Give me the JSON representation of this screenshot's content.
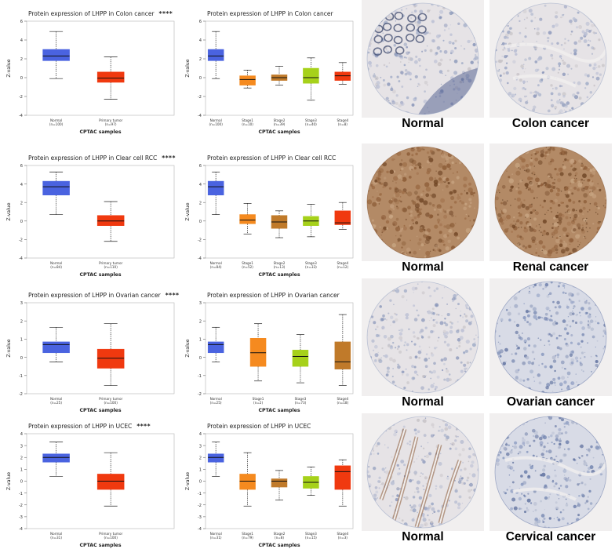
{
  "chart_data": [
    {
      "type": "box",
      "cancer": "Colon cancer",
      "title": "Protein expression of LHPP in Colon cancer",
      "significance": "****",
      "xlabel": "CPTAC samples",
      "ylabel": "Z-value",
      "ylim": [
        -4,
        6
      ],
      "yticks": [
        "6",
        "4",
        "2",
        "0",
        "-2",
        "-4"
      ],
      "boxes": [
        {
          "label": "Normal",
          "n": "(n=100)",
          "color": "#4a63e0",
          "min": -0.1,
          "q1": 1.8,
          "median": 2.3,
          "q3": 3.0,
          "max": 4.9
        },
        {
          "label": "Primary tumor",
          "n": "(n=97)",
          "color": "#f0390f",
          "min": -2.3,
          "q1": -0.5,
          "median": -0.05,
          "q3": 0.6,
          "max": 2.2
        }
      ]
    },
    {
      "type": "box",
      "cancer": "Colon cancer",
      "title": "Protein expression of LHPP in Colon cancer",
      "significance": "",
      "xlabel": "CPTAC samples",
      "ylabel": "Z-value",
      "ylim": [
        -4,
        6
      ],
      "yticks": [
        "6",
        "4",
        "2",
        "0",
        "-2",
        "-4"
      ],
      "boxes": [
        {
          "label": "Normal",
          "n": "(n=100)",
          "color": "#4a63e0",
          "min": -0.1,
          "q1": 1.8,
          "median": 2.3,
          "q3": 3.0,
          "max": 4.9
        },
        {
          "label": "Stage1",
          "n": "(n=10)",
          "color": "#f58a1f",
          "min": -1.1,
          "q1": -0.8,
          "median": -0.2,
          "q3": 0.2,
          "max": 0.8
        },
        {
          "label": "Stage2",
          "n": "(n=39)",
          "color": "#c07a2a",
          "min": -0.8,
          "q1": -0.3,
          "median": 0.0,
          "q3": 0.3,
          "max": 1.2
        },
        {
          "label": "Stage3",
          "n": "(n=40)",
          "color": "#a6d11a",
          "min": -2.4,
          "q1": -0.6,
          "median": 0.0,
          "q3": 1.0,
          "max": 2.1
        },
        {
          "label": "Stage4",
          "n": "(n=8)",
          "color": "#f0390f",
          "min": -0.7,
          "q1": -0.3,
          "median": 0.2,
          "q3": 0.6,
          "max": 1.6
        }
      ]
    },
    {
      "type": "box",
      "cancer": "Clear cell RCC",
      "title": "Protein expression of LHPP in Clear cell RCC",
      "significance": "****",
      "xlabel": "CPTAC samples",
      "ylabel": "Z-value",
      "ylim": [
        -4,
        6
      ],
      "yticks": [
        "6",
        "4",
        "2",
        "0",
        "-2",
        "-4"
      ],
      "boxes": [
        {
          "label": "Normal",
          "n": "(n=84)",
          "color": "#4a63e0",
          "min": 0.7,
          "q1": 2.8,
          "median": 3.7,
          "q3": 4.3,
          "max": 5.3
        },
        {
          "label": "Primary tumor",
          "n": "(n=110)",
          "color": "#f0390f",
          "min": -2.2,
          "q1": -0.5,
          "median": 0.0,
          "q3": 0.6,
          "max": 2.1
        }
      ]
    },
    {
      "type": "box",
      "cancer": "Clear cell RCC",
      "title": "Protein expression of LHPP in Clear cell RCC",
      "significance": "",
      "xlabel": "CPTAC samples",
      "ylabel": "Z-value",
      "ylim": [
        -4,
        6
      ],
      "yticks": [
        "6",
        "4",
        "2",
        "0",
        "-2",
        "-4"
      ],
      "boxes": [
        {
          "label": "Normal",
          "n": "(n=84)",
          "color": "#4a63e0",
          "min": 0.7,
          "q1": 2.8,
          "median": 3.7,
          "q3": 4.3,
          "max": 5.3
        },
        {
          "label": "Stage1",
          "n": "(n=52)",
          "color": "#f58a1f",
          "min": -1.4,
          "q1": -0.3,
          "median": 0.1,
          "q3": 0.7,
          "max": 1.9
        },
        {
          "label": "Stage2",
          "n": "(n=13)",
          "color": "#c07a2a",
          "min": -1.8,
          "q1": -0.8,
          "median": -0.1,
          "q3": 0.6,
          "max": 1.1
        },
        {
          "label": "Stage3",
          "n": "(n=33)",
          "color": "#a6d11a",
          "min": -1.7,
          "q1": -0.5,
          "median": 0.0,
          "q3": 0.5,
          "max": 1.8
        },
        {
          "label": "Stage4",
          "n": "(n=12)",
          "color": "#f0390f",
          "min": -0.9,
          "q1": -0.4,
          "median": -0.2,
          "q3": 1.1,
          "max": 2.0
        }
      ]
    },
    {
      "type": "box",
      "cancer": "Ovarian cancer",
      "title": "Protein expression of LHPP in Ovarian cancer",
      "significance": "****",
      "xlabel": "CPTAC samples",
      "ylabel": "Z-value",
      "ylim": [
        -2,
        3
      ],
      "yticks": [
        "3",
        "2",
        "1",
        "0",
        "-1",
        "-2"
      ],
      "boxes": [
        {
          "label": "Normal",
          "n": "(n=25)",
          "color": "#4a63e0",
          "min": -0.25,
          "q1": 0.25,
          "median": 0.7,
          "q3": 0.85,
          "max": 1.65
        },
        {
          "label": "Primary tumor",
          "n": "(n=100)",
          "color": "#f0390f",
          "min": -1.55,
          "q1": -0.6,
          "median": -0.05,
          "q3": 0.45,
          "max": 1.85
        }
      ]
    },
    {
      "type": "box",
      "cancer": "Ovarian cancer",
      "title": "Protein expression of LHPP in Ovarian cancer",
      "significance": "",
      "xlabel": "CPTAC samples",
      "ylabel": "Z-value",
      "ylim": [
        -2,
        3
      ],
      "yticks": [
        "3",
        "2",
        "1",
        "0",
        "-1",
        "-2"
      ],
      "boxes": [
        {
          "label": "Normal",
          "n": "(n=25)",
          "color": "#4a63e0",
          "min": -0.25,
          "q1": 0.25,
          "median": 0.7,
          "q3": 0.85,
          "max": 1.65
        },
        {
          "label": "Stage1",
          "n": "(n=2)",
          "color": "#f58a1f",
          "min": -1.3,
          "q1": -0.5,
          "median": 0.25,
          "q3": 1.05,
          "max": 1.85
        },
        {
          "label": "Stage3",
          "n": "(n=73)",
          "color": "#a6d11a",
          "min": -1.4,
          "q1": -0.5,
          "median": 0.05,
          "q3": 0.4,
          "max": 1.25
        },
        {
          "label": "Stage4",
          "n": "(n=18)",
          "color": "#c07a2a",
          "min": -1.55,
          "q1": -0.65,
          "median": -0.25,
          "q3": 0.85,
          "max": 2.35
        }
      ]
    },
    {
      "type": "box",
      "cancer": "UCEC",
      "title": "Protein expression of LHPP in UCEC",
      "significance": "****",
      "xlabel": "CPTAC samples",
      "ylabel": "Z-value",
      "ylim": [
        -4,
        4
      ],
      "yticks": [
        "4",
        "3",
        "2",
        "1",
        "0",
        "-1",
        "-2",
        "-3",
        "-4"
      ],
      "boxes": [
        {
          "label": "Normal",
          "n": "(n=31)",
          "color": "#4a63e0",
          "min": 0.4,
          "q1": 1.6,
          "median": 2.0,
          "q3": 2.3,
          "max": 3.3
        },
        {
          "label": "Primary tumor",
          "n": "(n=100)",
          "color": "#f0390f",
          "min": -2.1,
          "q1": -0.7,
          "median": 0.0,
          "q3": 0.6,
          "max": 2.4
        }
      ]
    },
    {
      "type": "box",
      "cancer": "UCEC",
      "title": "Protein expression of LHPP in UCEC",
      "significance": "",
      "xlabel": "CPTAC samples",
      "ylabel": "Z-value",
      "ylim": [
        -4,
        4
      ],
      "yticks": [
        "4",
        "3",
        "2",
        "1",
        "0",
        "-1",
        "-2",
        "-3",
        "-4"
      ],
      "boxes": [
        {
          "label": "Normal",
          "n": "(n=31)",
          "color": "#4a63e0",
          "min": 0.4,
          "q1": 1.6,
          "median": 2.0,
          "q3": 2.3,
          "max": 3.3
        },
        {
          "label": "Stage1",
          "n": "(n=79)",
          "color": "#f58a1f",
          "min": -2.1,
          "q1": -0.7,
          "median": 0.0,
          "q3": 0.6,
          "max": 2.4
        },
        {
          "label": "Stage2",
          "n": "(n=8)",
          "color": "#c07a2a",
          "min": -1.6,
          "q1": -0.5,
          "median": 0.0,
          "q3": 0.2,
          "max": 0.9
        },
        {
          "label": "Stage3",
          "n": "(n=15)",
          "color": "#a6d11a",
          "min": -1.2,
          "q1": -0.6,
          "median": -0.1,
          "q3": 0.4,
          "max": 1.2
        },
        {
          "label": "Stage4",
          "n": "(n=3)",
          "color": "#f0390f",
          "min": -2.1,
          "q1": -0.7,
          "median": 0.8,
          "q3": 1.3,
          "max": 1.8
        }
      ]
    }
  ],
  "tissue_images": [
    {
      "label": "Normal",
      "stain": "light",
      "bg": "#f1efef"
    },
    {
      "label": "Colon cancer",
      "stain": "light",
      "bg": "#f1efef"
    },
    {
      "label": "Normal",
      "stain": "brown",
      "bg": "#f1efef"
    },
    {
      "label": "Renal cancer",
      "stain": "brown",
      "bg": "#f1efef"
    },
    {
      "label": "Normal",
      "stain": "light",
      "bg": "#f1efef"
    },
    {
      "label": "Ovarian cancer",
      "stain": "blue",
      "bg": "#f1efef"
    },
    {
      "label": "Normal",
      "stain": "light",
      "bg": "#f1efef"
    },
    {
      "label": "Cervical cancer",
      "stain": "blue",
      "bg": "#f1efef"
    }
  ]
}
